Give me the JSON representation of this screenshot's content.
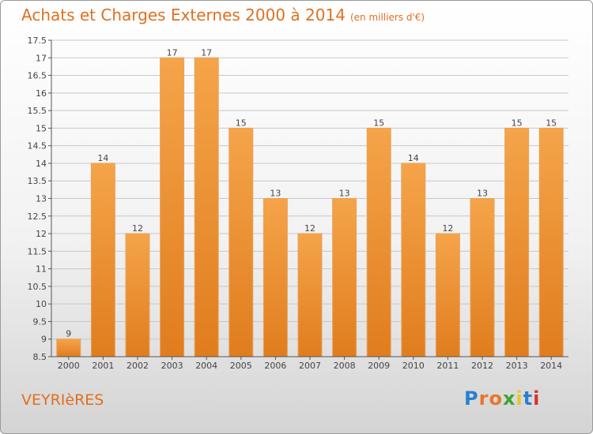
{
  "header": {
    "title": "Achats et Charges Externes 2000 à 2014",
    "subtitle": "(en milliers d'€)"
  },
  "footer": {
    "commune": "VEYRIèRES",
    "logo_text": "Proxiti",
    "logo_colors": [
      "#2a7fd0",
      "#e8762c",
      "#e8762c",
      "#3aa636",
      "#e8c52c",
      "#2a7fd0",
      "#d8332c"
    ]
  },
  "colors": {
    "bar_light": "#f5a44a",
    "bar_dark": "#e07d1e",
    "grid": "#c8c8c8",
    "title": "#e07020"
  },
  "chart_data": {
    "type": "bar",
    "categories": [
      "2000",
      "2001",
      "2002",
      "2003",
      "2004",
      "2005",
      "2006",
      "2007",
      "2008",
      "2009",
      "2010",
      "2011",
      "2012",
      "2013",
      "2014"
    ],
    "values": [
      9,
      14,
      12,
      17,
      17,
      15,
      13,
      12,
      13,
      15,
      14,
      12,
      13,
      15,
      15
    ],
    "value_labels": [
      "9",
      "14",
      "12",
      "17",
      "17",
      "15",
      "13",
      "12",
      "13",
      "15",
      "14",
      "12",
      "13",
      "15",
      "15"
    ],
    "yticks": [
      "8.5",
      "9",
      "9.5",
      "10",
      "10.5",
      "11",
      "11.5",
      "12",
      "12.5",
      "13",
      "13.5",
      "14",
      "14.5",
      "15",
      "15.5",
      "16",
      "16.5",
      "17",
      "17.5"
    ],
    "ylim": [
      8.5,
      17.5
    ],
    "title": "Achats et Charges Externes 2000 à 2014",
    "xlabel": "",
    "ylabel": "",
    "grid": true
  }
}
